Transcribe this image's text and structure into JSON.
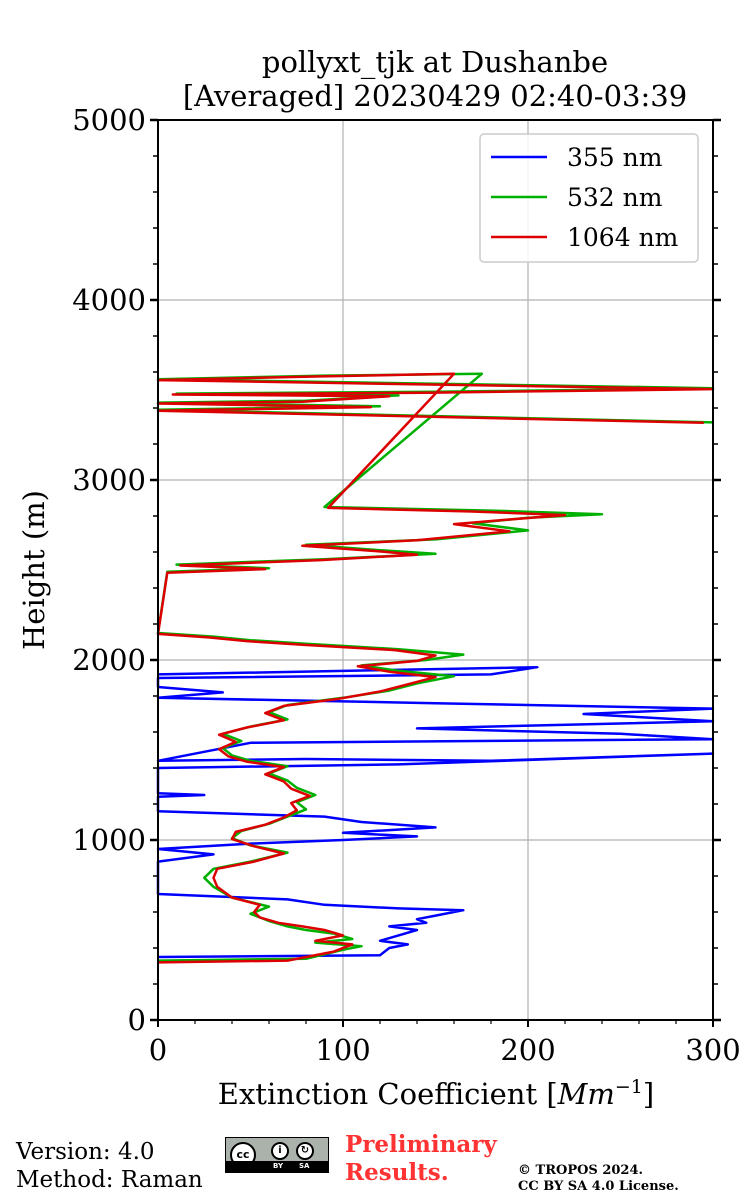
{
  "chart_data": {
    "type": "line",
    "title_line1": "pollyxt_tjk at Dushanbe",
    "title_line2": "[Averaged] 20230429 02:40-03:39",
    "xlabel": "Extinction Coefficient [",
    "xlabel_unit": "Mm",
    "xlabel_exp": "−1",
    "xlabel_close": "]",
    "ylabel": "Height (m)",
    "xlim": [
      0,
      300
    ],
    "ylim": [
      0,
      5000
    ],
    "xticks": [
      0,
      100,
      200,
      300
    ],
    "yticks": [
      0,
      1000,
      2000,
      3000,
      4000,
      5000
    ],
    "grid": true,
    "legend_position": "top-right",
    "series": [
      {
        "name": "355 nm",
        "color": "#0000ff",
        "points": [
          [
            0,
            350
          ],
          [
            120,
            360
          ],
          [
            125,
            400
          ],
          [
            135,
            420
          ],
          [
            120,
            440
          ],
          [
            130,
            470
          ],
          [
            140,
            500
          ],
          [
            125,
            520
          ],
          [
            145,
            540
          ],
          [
            140,
            560
          ],
          [
            150,
            580
          ],
          [
            165,
            610
          ],
          [
            130,
            620
          ],
          [
            90,
            640
          ],
          [
            70,
            670
          ],
          [
            0,
            700
          ],
          [
            0,
            780
          ],
          [
            0,
            880
          ],
          [
            15,
            900
          ],
          [
            30,
            920
          ],
          [
            10,
            940
          ],
          [
            0,
            950
          ],
          [
            50,
            980
          ],
          [
            100,
            1000
          ],
          [
            140,
            1020
          ],
          [
            100,
            1040
          ],
          [
            150,
            1070
          ],
          [
            110,
            1100
          ],
          [
            90,
            1130
          ],
          [
            0,
            1160
          ],
          [
            0,
            1240
          ],
          [
            25,
            1250
          ],
          [
            0,
            1260
          ],
          [
            0,
            1400
          ],
          [
            130,
            1420
          ],
          [
            300,
            1480
          ],
          [
            180,
            1440
          ],
          [
            80,
            1450
          ],
          [
            0,
            1440
          ],
          [
            50,
            1540
          ],
          [
            300,
            1560
          ],
          [
            250,
            1590
          ],
          [
            140,
            1620
          ],
          [
            300,
            1660
          ],
          [
            230,
            1700
          ],
          [
            300,
            1730
          ],
          [
            150,
            1760
          ],
          [
            0,
            1790
          ],
          [
            35,
            1820
          ],
          [
            0,
            1850
          ],
          [
            0,
            1900
          ],
          [
            180,
            1920
          ],
          [
            205,
            1960
          ],
          [
            0,
            1920
          ]
        ]
      },
      {
        "name": "532 nm",
        "color": "#00b000",
        "points": [
          [
            0,
            330
          ],
          [
            80,
            340
          ],
          [
            100,
            390
          ],
          [
            110,
            410
          ],
          [
            85,
            430
          ],
          [
            105,
            450
          ],
          [
            95,
            480
          ],
          [
            80,
            500
          ],
          [
            70,
            520
          ],
          [
            60,
            550
          ],
          [
            50,
            590
          ],
          [
            60,
            630
          ],
          [
            40,
            680
          ],
          [
            30,
            740
          ],
          [
            25,
            790
          ],
          [
            30,
            840
          ],
          [
            50,
            880
          ],
          [
            70,
            930
          ],
          [
            50,
            970
          ],
          [
            40,
            1010
          ],
          [
            45,
            1050
          ],
          [
            60,
            1090
          ],
          [
            70,
            1130
          ],
          [
            80,
            1170
          ],
          [
            75,
            1210
          ],
          [
            85,
            1250
          ],
          [
            75,
            1290
          ],
          [
            70,
            1330
          ],
          [
            60,
            1370
          ],
          [
            70,
            1410
          ],
          [
            50,
            1440
          ],
          [
            40,
            1470
          ],
          [
            35,
            1510
          ],
          [
            45,
            1550
          ],
          [
            35,
            1590
          ],
          [
            50,
            1630
          ],
          [
            70,
            1670
          ],
          [
            60,
            1710
          ],
          [
            70,
            1750
          ],
          [
            100,
            1790
          ],
          [
            125,
            1830
          ],
          [
            140,
            1870
          ],
          [
            160,
            1910
          ],
          [
            130,
            1940
          ],
          [
            110,
            1970
          ],
          [
            145,
            2000
          ],
          [
            165,
            2030
          ],
          [
            130,
            2060
          ],
          [
            80,
            2090
          ],
          [
            50,
            2110
          ],
          [
            30,
            2130
          ],
          [
            0,
            2150
          ],
          [
            5,
            2490
          ],
          [
            60,
            2510
          ],
          [
            10,
            2530
          ],
          [
            90,
            2560
          ],
          [
            150,
            2590
          ],
          [
            120,
            2610
          ],
          [
            80,
            2640
          ],
          [
            150,
            2670
          ],
          [
            200,
            2720
          ],
          [
            170,
            2760
          ],
          [
            200,
            2790
          ],
          [
            240,
            2810
          ],
          [
            180,
            2830
          ],
          [
            90,
            2850
          ],
          [
            175,
            3590
          ],
          [
            90,
            3580
          ],
          [
            0,
            3560
          ],
          [
            300,
            3510
          ],
          [
            150,
            3490
          ],
          [
            10,
            3480
          ],
          [
            130,
            3470
          ],
          [
            80,
            3440
          ],
          [
            0,
            3430
          ],
          [
            120,
            3410
          ],
          [
            0,
            3390
          ],
          [
            300,
            3320
          ]
        ]
      },
      {
        "name": "1064 nm",
        "color": "#dd0000",
        "points": [
          [
            0,
            320
          ],
          [
            70,
            330
          ],
          [
            95,
            380
          ],
          [
            105,
            420
          ],
          [
            85,
            440
          ],
          [
            100,
            470
          ],
          [
            90,
            500
          ],
          [
            78,
            520
          ],
          [
            65,
            540
          ],
          [
            55,
            570
          ],
          [
            52,
            600
          ],
          [
            55,
            640
          ],
          [
            40,
            680
          ],
          [
            32,
            740
          ],
          [
            30,
            790
          ],
          [
            32,
            840
          ],
          [
            52,
            880
          ],
          [
            68,
            925
          ],
          [
            52,
            965
          ],
          [
            40,
            1005
          ],
          [
            42,
            1045
          ],
          [
            58,
            1085
          ],
          [
            68,
            1125
          ],
          [
            75,
            1165
          ],
          [
            72,
            1205
          ],
          [
            82,
            1245
          ],
          [
            72,
            1285
          ],
          [
            68,
            1325
          ],
          [
            58,
            1365
          ],
          [
            68,
            1405
          ],
          [
            48,
            1435
          ],
          [
            38,
            1465
          ],
          [
            33,
            1505
          ],
          [
            42,
            1545
          ],
          [
            33,
            1585
          ],
          [
            48,
            1625
          ],
          [
            68,
            1665
          ],
          [
            58,
            1705
          ],
          [
            68,
            1745
          ],
          [
            98,
            1785
          ],
          [
            120,
            1825
          ],
          [
            135,
            1865
          ],
          [
            150,
            1905
          ],
          [
            125,
            1935
          ],
          [
            108,
            1965
          ],
          [
            140,
            1995
          ],
          [
            150,
            2025
          ],
          [
            128,
            2055
          ],
          [
            78,
            2085
          ],
          [
            48,
            2105
          ],
          [
            28,
            2125
          ],
          [
            0,
            2145
          ],
          [
            5,
            2485
          ],
          [
            58,
            2505
          ],
          [
            12,
            2525
          ],
          [
            88,
            2555
          ],
          [
            140,
            2585
          ],
          [
            118,
            2605
          ],
          [
            78,
            2635
          ],
          [
            140,
            2665
          ],
          [
            190,
            2715
          ],
          [
            160,
            2755
          ],
          [
            195,
            2785
          ],
          [
            220,
            2805
          ],
          [
            170,
            2825
          ],
          [
            92,
            2845
          ],
          [
            160,
            3590
          ],
          [
            85,
            3575
          ],
          [
            0,
            3555
          ],
          [
            300,
            3505
          ],
          [
            145,
            3485
          ],
          [
            8,
            3475
          ],
          [
            125,
            3465
          ],
          [
            78,
            3435
          ],
          [
            0,
            3425
          ],
          [
            115,
            3405
          ],
          [
            0,
            3385
          ],
          [
            295,
            3318
          ]
        ]
      }
    ]
  },
  "footer": {
    "version": "Version: 4.0",
    "method": "Method: Raman",
    "preliminary_line1": "Preliminary",
    "preliminary_line2": "Results.",
    "copyright_line1": "© TROPOS 2024.",
    "copyright_line2": "CC BY SA 4.0 License.",
    "license_badge": {
      "cc": "cc",
      "by": "BY",
      "sa": "SA"
    }
  }
}
